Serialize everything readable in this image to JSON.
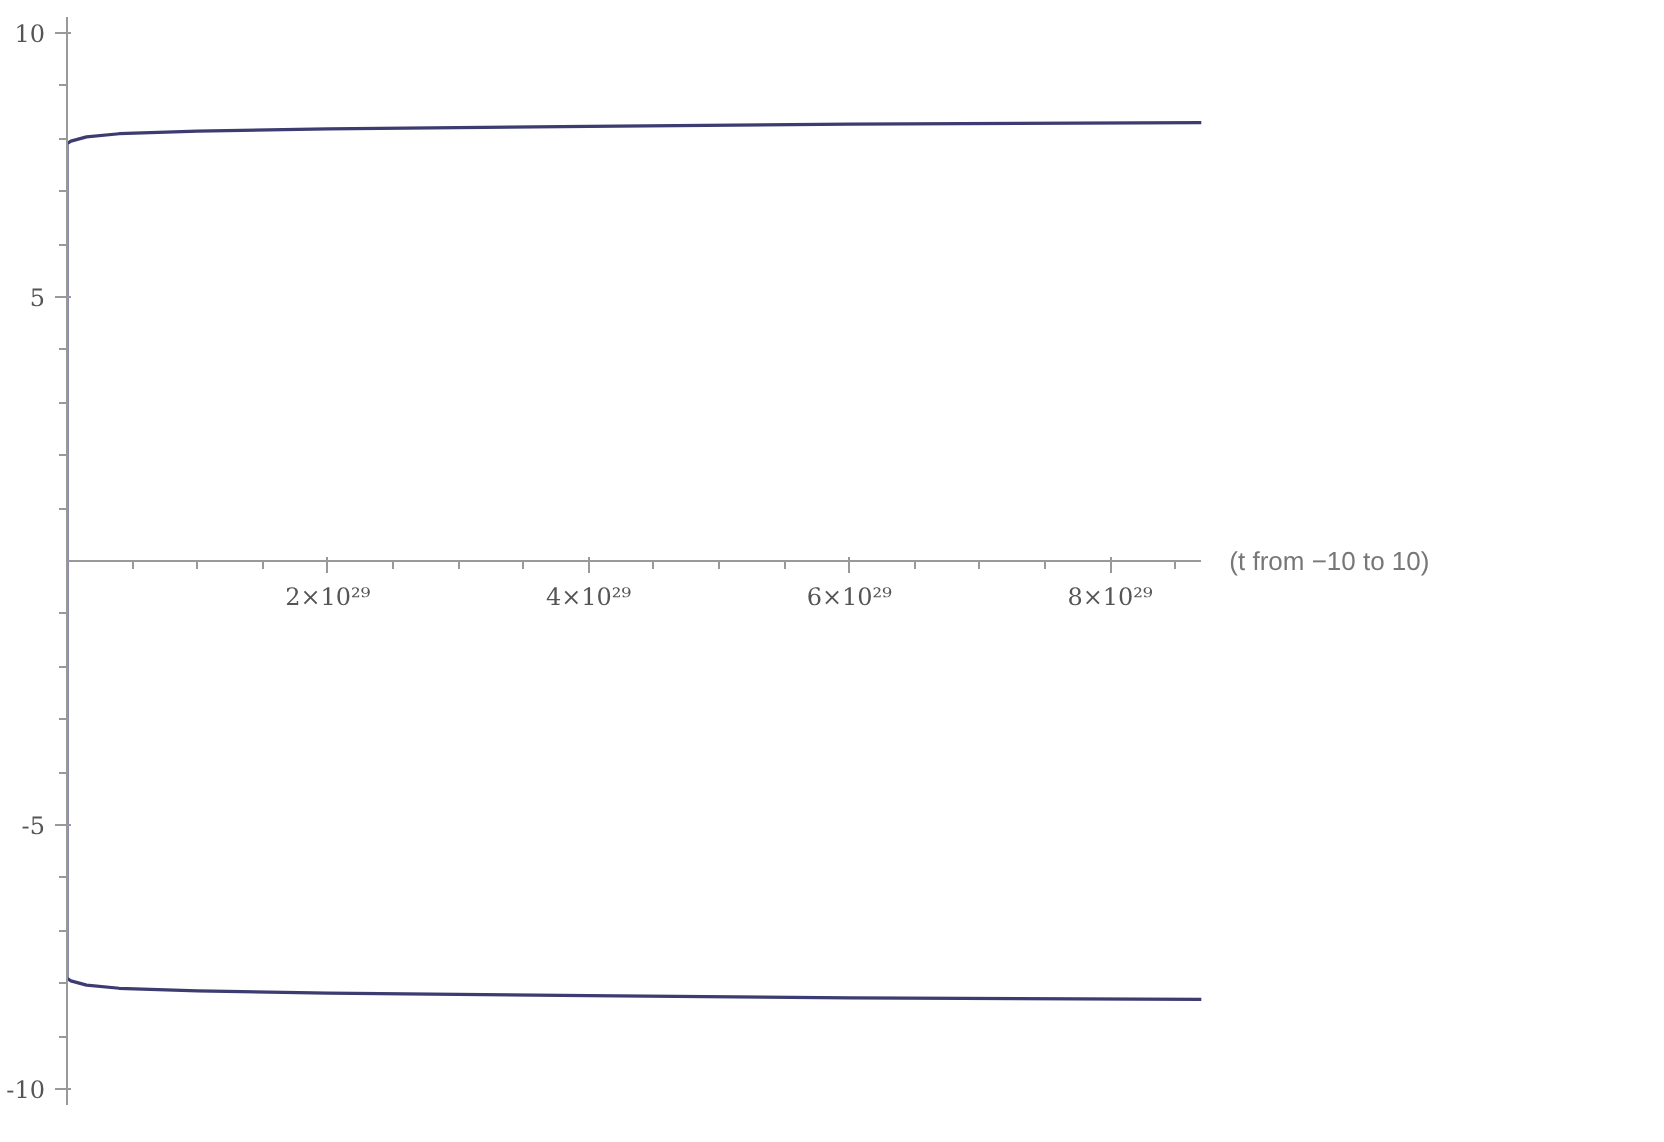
{
  "chart_data": {
    "type": "line",
    "xlabel": "(t from −10 to 10)",
    "x": [
      8.7e+29,
      6e+29,
      4e+29,
      2e+29,
      1e+29,
      4e+28,
      1.5e+28,
      3e+27,
      0,
      0,
      3e+27,
      1.5e+28,
      4e+28,
      1e+29,
      2e+29,
      4e+29,
      6e+29,
      8.7e+29
    ],
    "series": [
      {
        "color": "#3c3c70",
        "values": [
          -8.3,
          -8.27,
          -8.23,
          -8.18,
          -8.14,
          -8.09,
          -8.03,
          -7.95,
          -7.9,
          7.9,
          7.95,
          8.03,
          8.09,
          8.14,
          8.18,
          8.23,
          8.27,
          8.3
        ]
      }
    ],
    "xlim": [
      0,
      8.7e+29
    ],
    "ylim": [
      -10.3,
      10.3
    ],
    "xticks": [
      {
        "value": 2e+29,
        "label": "2×10²⁹"
      },
      {
        "value": 4e+29,
        "label": "4×10²⁹"
      },
      {
        "value": 6e+29,
        "label": "6×10²⁹"
      },
      {
        "value": 8e+29,
        "label": "8×10²⁹"
      },
      {
        "value": 5e+28,
        "label": null
      },
      {
        "value": 1e+29,
        "label": null
      },
      {
        "value": 1.5e+29,
        "label": null
      },
      {
        "value": 2.5e+29,
        "label": null
      },
      {
        "value": 3e+29,
        "label": null
      },
      {
        "value": 3.5e+29,
        "label": null
      },
      {
        "value": 4.5e+29,
        "label": null
      },
      {
        "value": 5e+29,
        "label": null
      },
      {
        "value": 5.5e+29,
        "label": null
      },
      {
        "value": 6.5e+29,
        "label": null
      },
      {
        "value": 7e+29,
        "label": null
      },
      {
        "value": 7.5e+29,
        "label": null
      },
      {
        "value": 8.5e+29,
        "label": null
      }
    ],
    "yticks": [
      -10,
      -5,
      5,
      10,
      {
        "value": -9,
        "label": null
      },
      {
        "value": -8,
        "label": null
      },
      {
        "value": -7,
        "label": null
      },
      {
        "value": -6,
        "label": null
      },
      {
        "value": -4,
        "label": null
      },
      {
        "value": -3,
        "label": null
      },
      {
        "value": -2,
        "label": null
      },
      {
        "value": -1,
        "label": null
      },
      {
        "value": 1,
        "label": null
      },
      {
        "value": 2,
        "label": null
      },
      {
        "value": 3,
        "label": null
      },
      {
        "value": 4,
        "label": null
      },
      {
        "value": 6,
        "label": null
      },
      {
        "value": 7,
        "label": null
      },
      {
        "value": 8,
        "label": null
      },
      {
        "value": 9,
        "label": null
      }
    ],
    "grid": false,
    "marker": "none",
    "line_style": "solid"
  }
}
